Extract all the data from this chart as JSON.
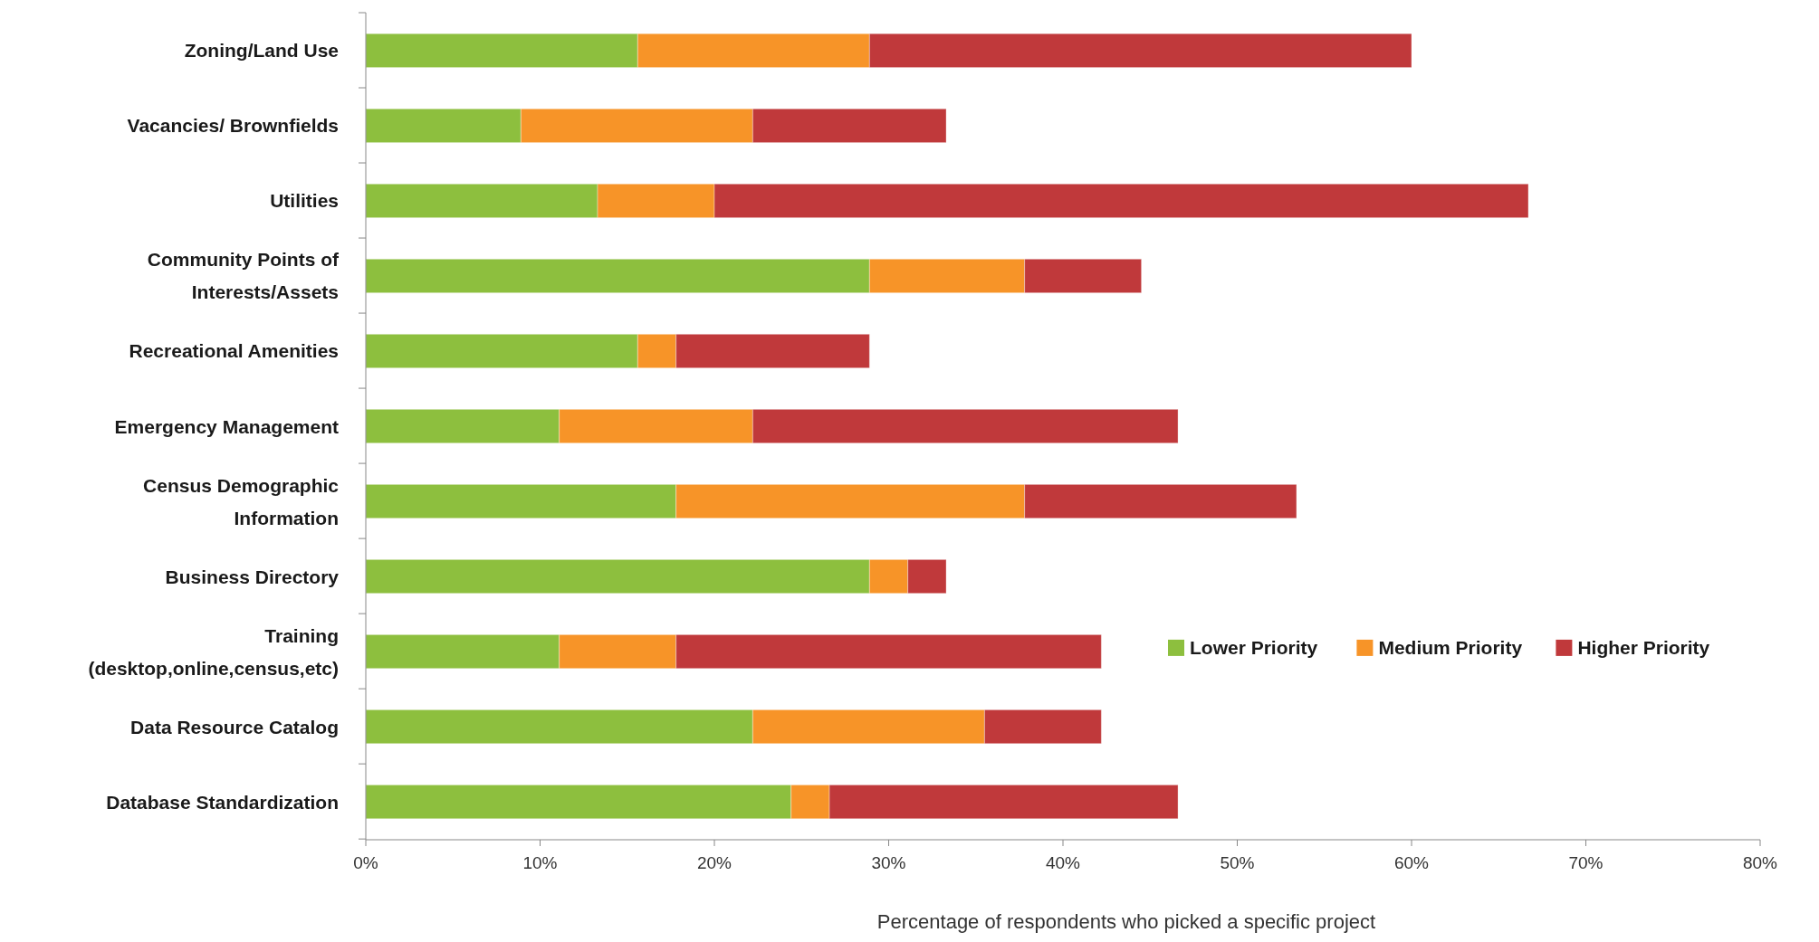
{
  "chart_data": {
    "type": "bar",
    "orientation": "horizontal",
    "stacked": true,
    "xlabel": "Percentage of respondents who picked a specific project",
    "categories": [
      "Zoning/Land Use",
      "Vacancies/ Brownfields",
      "Utilities",
      "Community Points of Interests/Assets",
      "Recreational Amenities",
      "Emergency Management",
      "Census Demographic Information",
      "Business Directory",
      "Training (desktop,online,census,etc)",
      "Data Resource Catalog",
      "Database Standardization"
    ],
    "series": [
      {
        "name": "Lower Priority",
        "color": "#8dbf3e",
        "values": [
          15.6,
          8.9,
          13.3,
          28.9,
          15.6,
          11.1,
          17.8,
          28.9,
          11.1,
          22.2,
          24.4
        ]
      },
      {
        "name": "Medium Priority",
        "color": "#f79428",
        "values": [
          13.3,
          13.3,
          6.7,
          8.9,
          2.2,
          11.1,
          20.0,
          2.2,
          6.7,
          13.3,
          2.2
        ]
      },
      {
        "name": "Higher Priority",
        "color": "#c0393b",
        "values": [
          31.1,
          11.1,
          46.7,
          6.7,
          11.1,
          24.4,
          15.6,
          2.2,
          24.4,
          6.7,
          20.0
        ]
      }
    ],
    "xlim": [
      0,
      80
    ],
    "xticks": [
      {
        "value": 0,
        "label": "0%"
      },
      {
        "value": 10,
        "label": "10%"
      },
      {
        "value": 20,
        "label": "20%"
      },
      {
        "value": 30,
        "label": "30%"
      },
      {
        "value": 40,
        "label": "40%"
      },
      {
        "value": 50,
        "label": "50%"
      },
      {
        "value": 60,
        "label": "60%"
      },
      {
        "value": 70,
        "label": "70%"
      },
      {
        "value": 80,
        "label": "80%"
      }
    ],
    "grid": false,
    "legend": "right"
  }
}
